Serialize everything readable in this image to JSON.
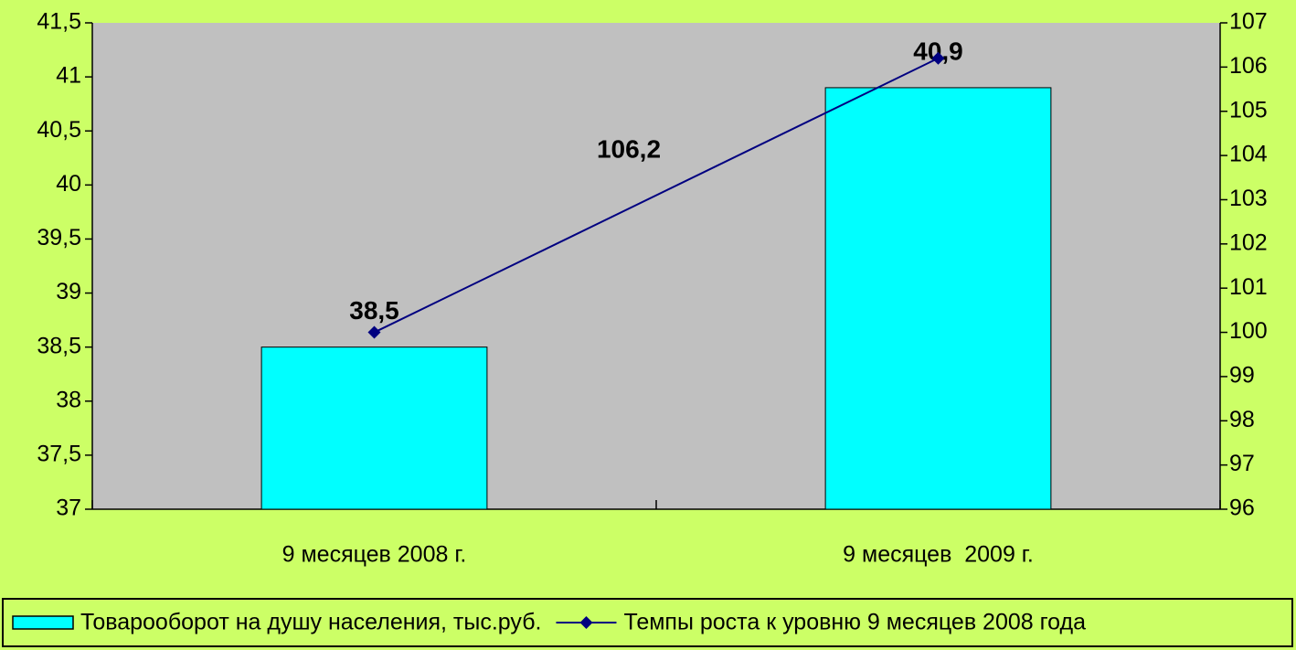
{
  "chart_data": {
    "type": "bar",
    "categories": [
      "9 месяцев 2008 г.",
      "9 месяцев  2009 г."
    ],
    "series": [
      {
        "name": "Товарооборот на душу населения, тыс.руб.",
        "type": "bar",
        "color": "#00ffff",
        "values": [
          38.5,
          40.9
        ],
        "value_labels": [
          "38,5",
          "40,9"
        ]
      },
      {
        "name": "Темпы роста к уровню 9 месяцев 2008 года",
        "type": "line",
        "axis": "y2",
        "color": "#000080",
        "values": [
          100,
          106.2
        ],
        "value_labels": [
          null,
          "106,2"
        ]
      }
    ],
    "ylim": [
      37,
      41.5
    ],
    "yticks": [
      37,
      {
        "value": 37.5,
        "label": "37,5"
      },
      38,
      {
        "value": 38.5,
        "label": "38,5"
      },
      39,
      {
        "value": 39.5,
        "label": "39,5"
      },
      40,
      {
        "value": 40.5,
        "label": "40,5"
      },
      41,
      {
        "value": 41.5,
        "label": "41,5"
      }
    ],
    "y2lim": [
      96,
      107
    ],
    "y2ticks": [
      96,
      97,
      98,
      99,
      100,
      101,
      102,
      103,
      104,
      105,
      106,
      107
    ],
    "legend": "bottom"
  }
}
